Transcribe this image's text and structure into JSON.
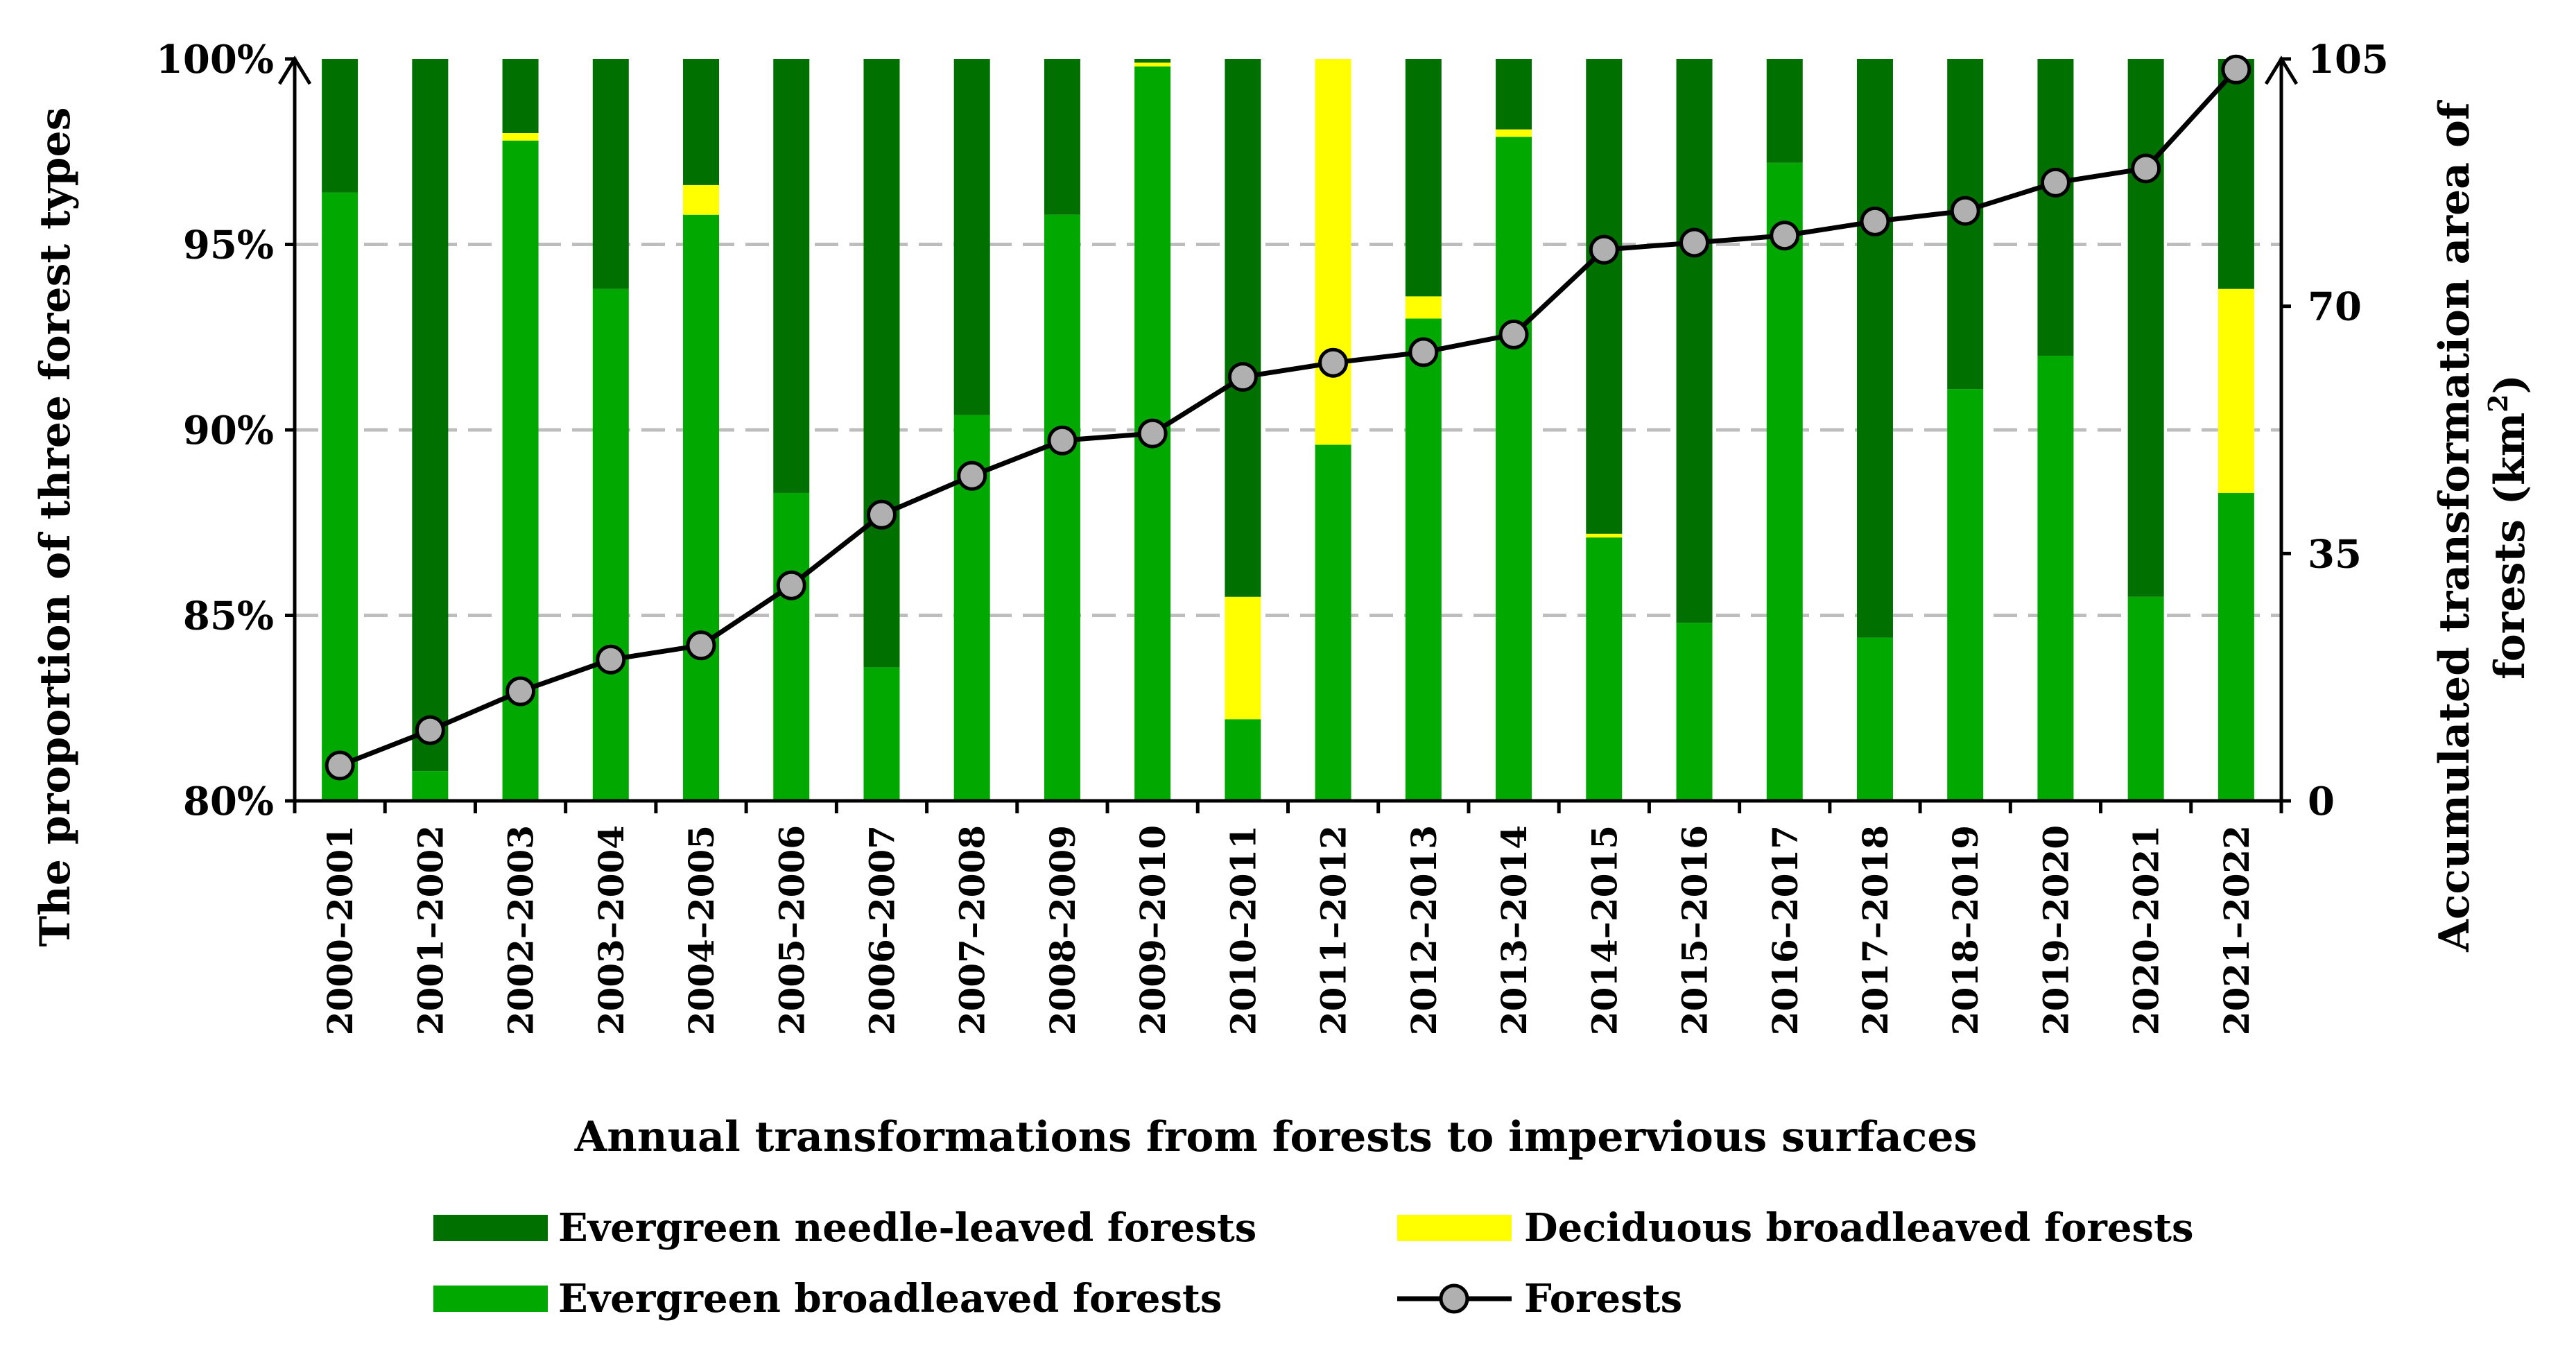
{
  "chart_data": {
    "type": "bar+line",
    "xlabel": "Annual transformations from forests to impervious surfaces",
    "ylabel_left": "The proportion of three forest types",
    "ylabel_right_line1": "Accumulated transformation area of",
    "ylabel_right_line2": "forests (km",
    "ylabel_right_sup": "2",
    "ylabel_right_close": ")",
    "left_axis": {
      "min": 80,
      "max": 100,
      "ticks": [
        80,
        85,
        90,
        95,
        100
      ],
      "tick_labels": [
        "80%",
        "85%",
        "90%",
        "95%",
        "100%"
      ]
    },
    "right_axis": {
      "min": 0,
      "max": 105,
      "ticks": [
        0,
        35,
        70,
        105
      ],
      "tick_labels": [
        "0",
        "35",
        "70",
        "105"
      ]
    },
    "gridlines": "dashed at 85%, 90%, 95%",
    "categories": [
      "2000–2001",
      "2001–2002",
      "2002–2003",
      "2003–2004",
      "2004–2005",
      "2005–2006",
      "2006–2007",
      "2007–2008",
      "2008–2009",
      "2009–2010",
      "2010–2011",
      "2011–2012",
      "2012–2013",
      "2013–2014",
      "2014–2015",
      "2015–2016",
      "2016–2017",
      "2017–2018",
      "2018–2019",
      "2019–2020",
      "2020–2021",
      "2021–2022"
    ],
    "series": [
      {
        "name": "Evergreen broadleaved forests",
        "kind": "stacked-bar",
        "color": "#00a800",
        "values": [
          96.4,
          80.8,
          97.8,
          93.8,
          95.8,
          88.3,
          83.6,
          90.4,
          95.8,
          99.8,
          82.2,
          89.6,
          93.0,
          97.9,
          87.1,
          84.8,
          97.2,
          84.4,
          91.1,
          92.0,
          85.5,
          88.3
        ]
      },
      {
        "name": "Deciduous broadleaved forests",
        "kind": "stacked-bar",
        "color": "#ffff00",
        "values": [
          0,
          0,
          0.2,
          0,
          0.8,
          0,
          0,
          0,
          0,
          0.1,
          3.3,
          10.4,
          0.6,
          0.2,
          0.1,
          0,
          0,
          0,
          0,
          0,
          0,
          5.5
        ]
      },
      {
        "name": "Evergreen needle-leaved forests",
        "kind": "stacked-bar",
        "color": "#007000",
        "values": [
          3.6,
          19.2,
          2.0,
          6.2,
          3.4,
          11.7,
          16.4,
          9.6,
          4.2,
          0.1,
          14.5,
          0,
          6.4,
          1.9,
          12.8,
          15.2,
          2.8,
          15.6,
          8.9,
          8.0,
          14.5,
          6.2
        ]
      },
      {
        "name": "Forests",
        "kind": "line",
        "axis": "right",
        "color": "#000000",
        "marker_color": "#b0b0b0",
        "values": [
          5,
          10,
          15.5,
          20,
          22,
          30.5,
          40.5,
          46,
          51,
          52,
          60,
          62,
          63.5,
          66,
          78,
          79,
          80,
          82,
          83.5,
          87.5,
          89.5,
          103.5
        ]
      }
    ],
    "legend": {
      "placement": "bottom",
      "entries": [
        "Evergreen needle-leaved forests",
        "Deciduous broadleaved forests",
        "Evergreen broadleaved forests",
        "Forests"
      ]
    }
  }
}
